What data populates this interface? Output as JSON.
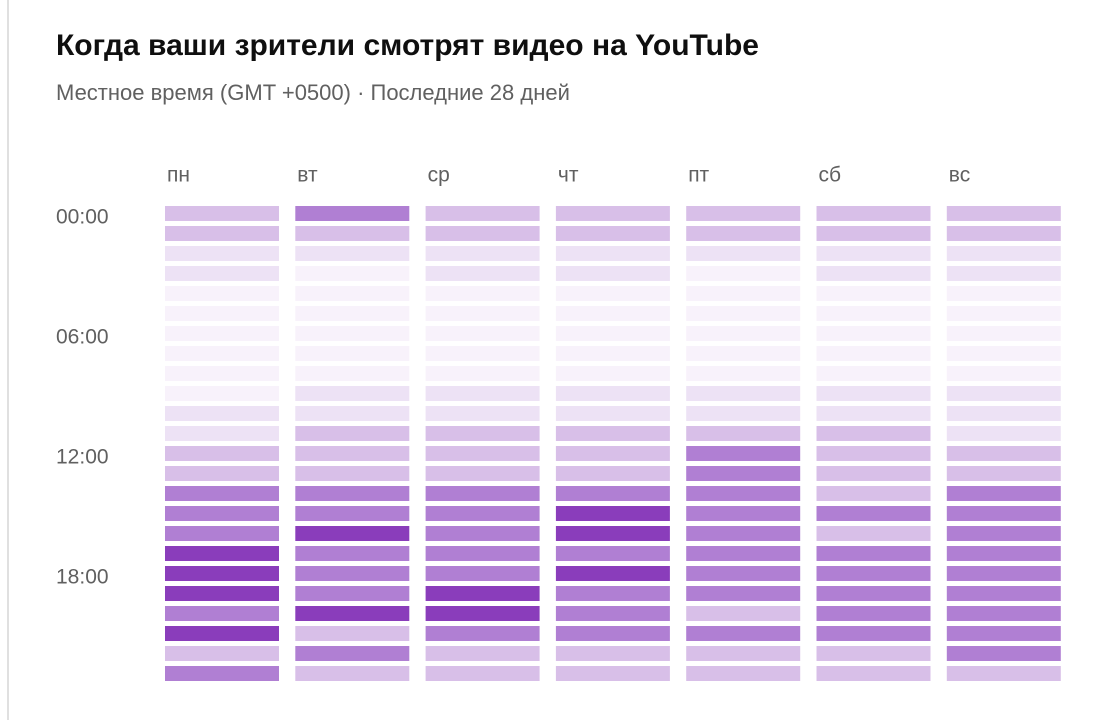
{
  "chart_data": {
    "type": "heatmap",
    "title": "Когда ваши зрители смотрят видео на YouTube",
    "subtitle": "Местное время (GMT +0500) · Последние 28 дней",
    "x": [
      "пн",
      "вт",
      "ср",
      "чт",
      "пт",
      "сб",
      "вс"
    ],
    "y": [
      "00:00",
      null,
      null,
      null,
      null,
      null,
      "06:00",
      null,
      null,
      null,
      null,
      null,
      "12:00",
      null,
      null,
      null,
      null,
      null,
      "18:00",
      null,
      null,
      null,
      null,
      null
    ],
    "colors": [
      "#f8f2fb",
      "#ede2f5",
      "#d8bfe8",
      "#b07fd3",
      "#8a3dbb"
    ],
    "values": [
      [
        2,
        3,
        2,
        2,
        2,
        2,
        2
      ],
      [
        2,
        2,
        2,
        2,
        2,
        2,
        2
      ],
      [
        1,
        1,
        1,
        1,
        1,
        1,
        1
      ],
      [
        1,
        0,
        1,
        1,
        0,
        1,
        1
      ],
      [
        0,
        0,
        0,
        0,
        0,
        0,
        0
      ],
      [
        0,
        0,
        0,
        0,
        0,
        0,
        0
      ],
      [
        0,
        0,
        0,
        0,
        0,
        0,
        0
      ],
      [
        0,
        0,
        0,
        0,
        0,
        0,
        0
      ],
      [
        0,
        0,
        0,
        0,
        0,
        0,
        0
      ],
      [
        0,
        1,
        1,
        1,
        1,
        1,
        1
      ],
      [
        1,
        1,
        1,
        1,
        1,
        1,
        1
      ],
      [
        1,
        2,
        2,
        2,
        2,
        2,
        1
      ],
      [
        2,
        2,
        2,
        2,
        3,
        2,
        2
      ],
      [
        2,
        2,
        2,
        2,
        3,
        2,
        2
      ],
      [
        3,
        3,
        3,
        3,
        3,
        2,
        3
      ],
      [
        3,
        3,
        3,
        4,
        3,
        3,
        3
      ],
      [
        3,
        4,
        3,
        4,
        3,
        2,
        3
      ],
      [
        4,
        3,
        3,
        3,
        3,
        3,
        3
      ],
      [
        4,
        3,
        3,
        4,
        3,
        3,
        3
      ],
      [
        4,
        3,
        4,
        3,
        3,
        3,
        3
      ],
      [
        3,
        4,
        4,
        3,
        2,
        3,
        3
      ],
      [
        4,
        2,
        3,
        3,
        3,
        3,
        3
      ],
      [
        2,
        3,
        2,
        2,
        2,
        2,
        3
      ],
      [
        3,
        2,
        2,
        2,
        2,
        2,
        2
      ]
    ]
  }
}
